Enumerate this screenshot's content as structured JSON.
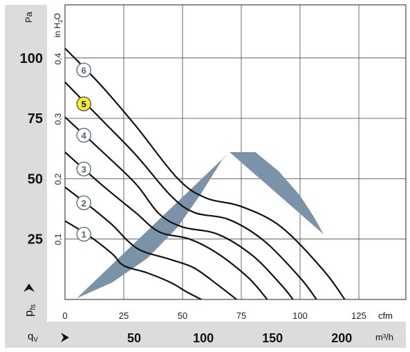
{
  "chart_data": {
    "type": "line",
    "title": "",
    "units": {
      "pressure_pa": "Pa",
      "pressure_inh2o": "in H",
      "pressure_inh2o_sub": "2",
      "pressure_inh2o_tail": "O",
      "flow_cfm": "cfm",
      "flow_m3h": "m³/h",
      "pressure_symbol": "p",
      "pressure_symbol_sub": "fs",
      "flow_symbol": "q",
      "flow_symbol_sub": "V"
    },
    "x_cfm": {
      "min": 0,
      "max": 145,
      "ticks": [
        0,
        25,
        50,
        75,
        100,
        125
      ],
      "tick_labels": [
        "0",
        "25",
        "50",
        "75",
        "100",
        "125"
      ]
    },
    "x_m3h": {
      "ticks": [
        50,
        100,
        150,
        200
      ],
      "tick_labels": [
        "50",
        "100",
        "150",
        "200"
      ]
    },
    "y_pa": {
      "min": 0,
      "max": 122,
      "ticks": [
        25,
        50,
        75,
        100
      ],
      "tick_labels": [
        "25",
        "50",
        "75",
        "100"
      ]
    },
    "y_inh2o": {
      "ticks": [
        0.1,
        0.2,
        0.3,
        0.4
      ],
      "tick_labels": [
        "0,1",
        "0,2",
        "0,3",
        "0,4"
      ]
    },
    "grid": true,
    "highlight_color": "#f7ee2a",
    "band_color": "#7b93a8",
    "recommended_range_band": {
      "upper": [
        [
          5,
          0.5
        ],
        [
          20,
          7
        ],
        [
          35,
          17
        ],
        [
          48,
          30
        ],
        [
          58,
          44
        ],
        [
          67,
          58
        ],
        [
          70,
          61
        ]
      ],
      "lower": [
        [
          110,
          27
        ],
        [
          106,
          34
        ],
        [
          100,
          43
        ],
        [
          91,
          53
        ],
        [
          81,
          61
        ],
        [
          70,
          61
        ]
      ]
    },
    "series": [
      {
        "name": "1",
        "label_at": [
          8,
          27
        ],
        "highlight": false,
        "points": [
          [
            0,
            32.5
          ],
          [
            10,
            26.5
          ],
          [
            20,
            19
          ],
          [
            25,
            14
          ],
          [
            35,
            11
          ],
          [
            45,
            7
          ],
          [
            52,
            3
          ],
          [
            58,
            0
          ]
        ]
      },
      {
        "name": "2",
        "label_at": [
          8,
          40
        ],
        "highlight": false,
        "points": [
          [
            0,
            46.5
          ],
          [
            10,
            39
          ],
          [
            20,
            31
          ],
          [
            27,
            24
          ],
          [
            33,
            20
          ],
          [
            45,
            16.5
          ],
          [
            55,
            13
          ],
          [
            65,
            6
          ],
          [
            73,
            0
          ]
        ]
      },
      {
        "name": "3",
        "label_at": [
          8,
          54
        ],
        "highlight": false,
        "points": [
          [
            0,
            61
          ],
          [
            15,
            48
          ],
          [
            30,
            36
          ],
          [
            40,
            28
          ],
          [
            53,
            25
          ],
          [
            65,
            19
          ],
          [
            78,
            9
          ],
          [
            86,
            0
          ]
        ]
      },
      {
        "name": "4",
        "label_at": [
          8,
          68
        ],
        "highlight": false,
        "points": [
          [
            0,
            75.5
          ],
          [
            15,
            62
          ],
          [
            30,
            48
          ],
          [
            40,
            35.5
          ],
          [
            50,
            30
          ],
          [
            65,
            27
          ],
          [
            80,
            18
          ],
          [
            92,
            6
          ],
          [
            97,
            0
          ]
        ]
      },
      {
        "name": "5",
        "label_at": [
          8,
          81
        ],
        "highlight": true,
        "points": [
          [
            0,
            90
          ],
          [
            15,
            75
          ],
          [
            30,
            60
          ],
          [
            45,
            43
          ],
          [
            55,
            36
          ],
          [
            70,
            33
          ],
          [
            85,
            24
          ],
          [
            100,
            9
          ],
          [
            107,
            0
          ]
        ]
      },
      {
        "name": "6",
        "label_at": [
          8,
          95
        ],
        "highlight": false,
        "points": [
          [
            0,
            104
          ],
          [
            15,
            89
          ],
          [
            30,
            72
          ],
          [
            48,
            50
          ],
          [
            60,
            42
          ],
          [
            75,
            38.5
          ],
          [
            92,
            30
          ],
          [
            110,
            12
          ],
          [
            119,
            0
          ]
        ]
      }
    ]
  }
}
